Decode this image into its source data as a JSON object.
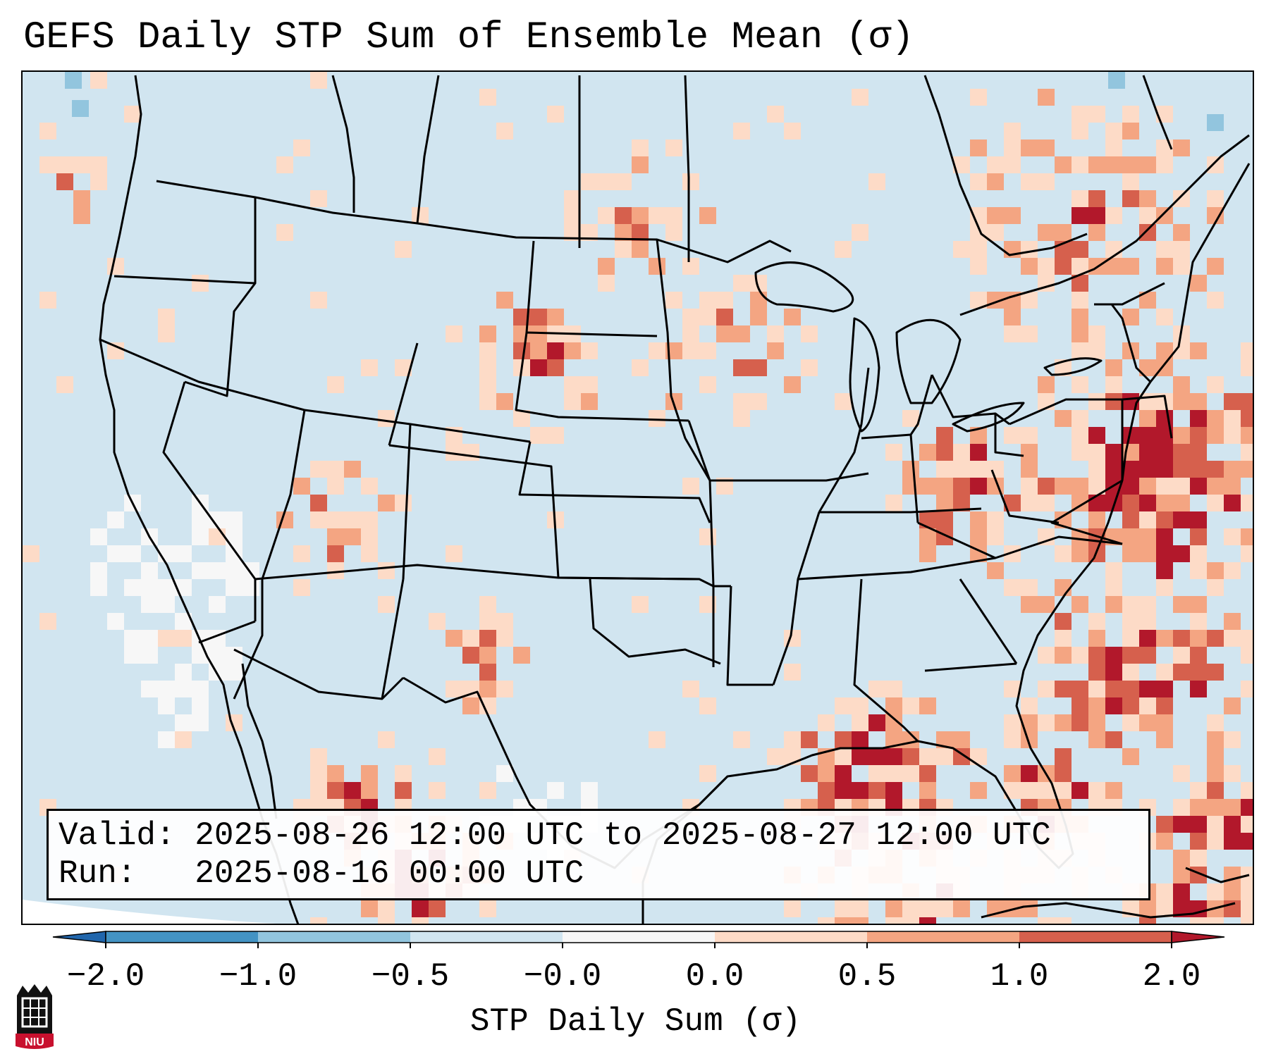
{
  "title": "GEFS Daily STP Sum of Ensemble Mean (σ)",
  "info": {
    "valid_label": "Valid:",
    "valid_value": "2025-08-26 12:00 UTC to 2025-08-27 12:00 UTC",
    "run_label": "Run:",
    "run_value": "2025-08-16 00:00 UTC"
  },
  "colorbar": {
    "label": "STP Daily Sum (σ)",
    "ticks": [
      "−2.0",
      "−1.0",
      "−0.5",
      "−0.0",
      "0.0",
      "0.5",
      "1.0",
      "2.0"
    ],
    "bins": [
      {
        "range": "< -2.0",
        "color": "#2166ac"
      },
      {
        "range": "-2.0 to -1.0",
        "color": "#4393c3"
      },
      {
        "range": "-1.0 to -0.5",
        "color": "#92c5de"
      },
      {
        "range": "-0.5 to -0.0",
        "color": "#d1e5f0"
      },
      {
        "range": "-0.0 to 0.0",
        "color": "#f7f7f7"
      },
      {
        "range": "0.0 to 0.5",
        "color": "#fddbc7"
      },
      {
        "range": "0.5 to 1.0",
        "color": "#f4a582"
      },
      {
        "range": "1.0 to 2.0",
        "color": "#d6604d"
      },
      {
        "range": "> 2.0",
        "color": "#b2182b"
      }
    ]
  },
  "map": {
    "background_color": "#d1e5f0",
    "region": "Contiguous United States, southern Canada, northern Mexico, Gulf of Mexico, western Atlantic"
  },
  "logo": {
    "text": "NIU",
    "color": "#c8102e"
  }
}
